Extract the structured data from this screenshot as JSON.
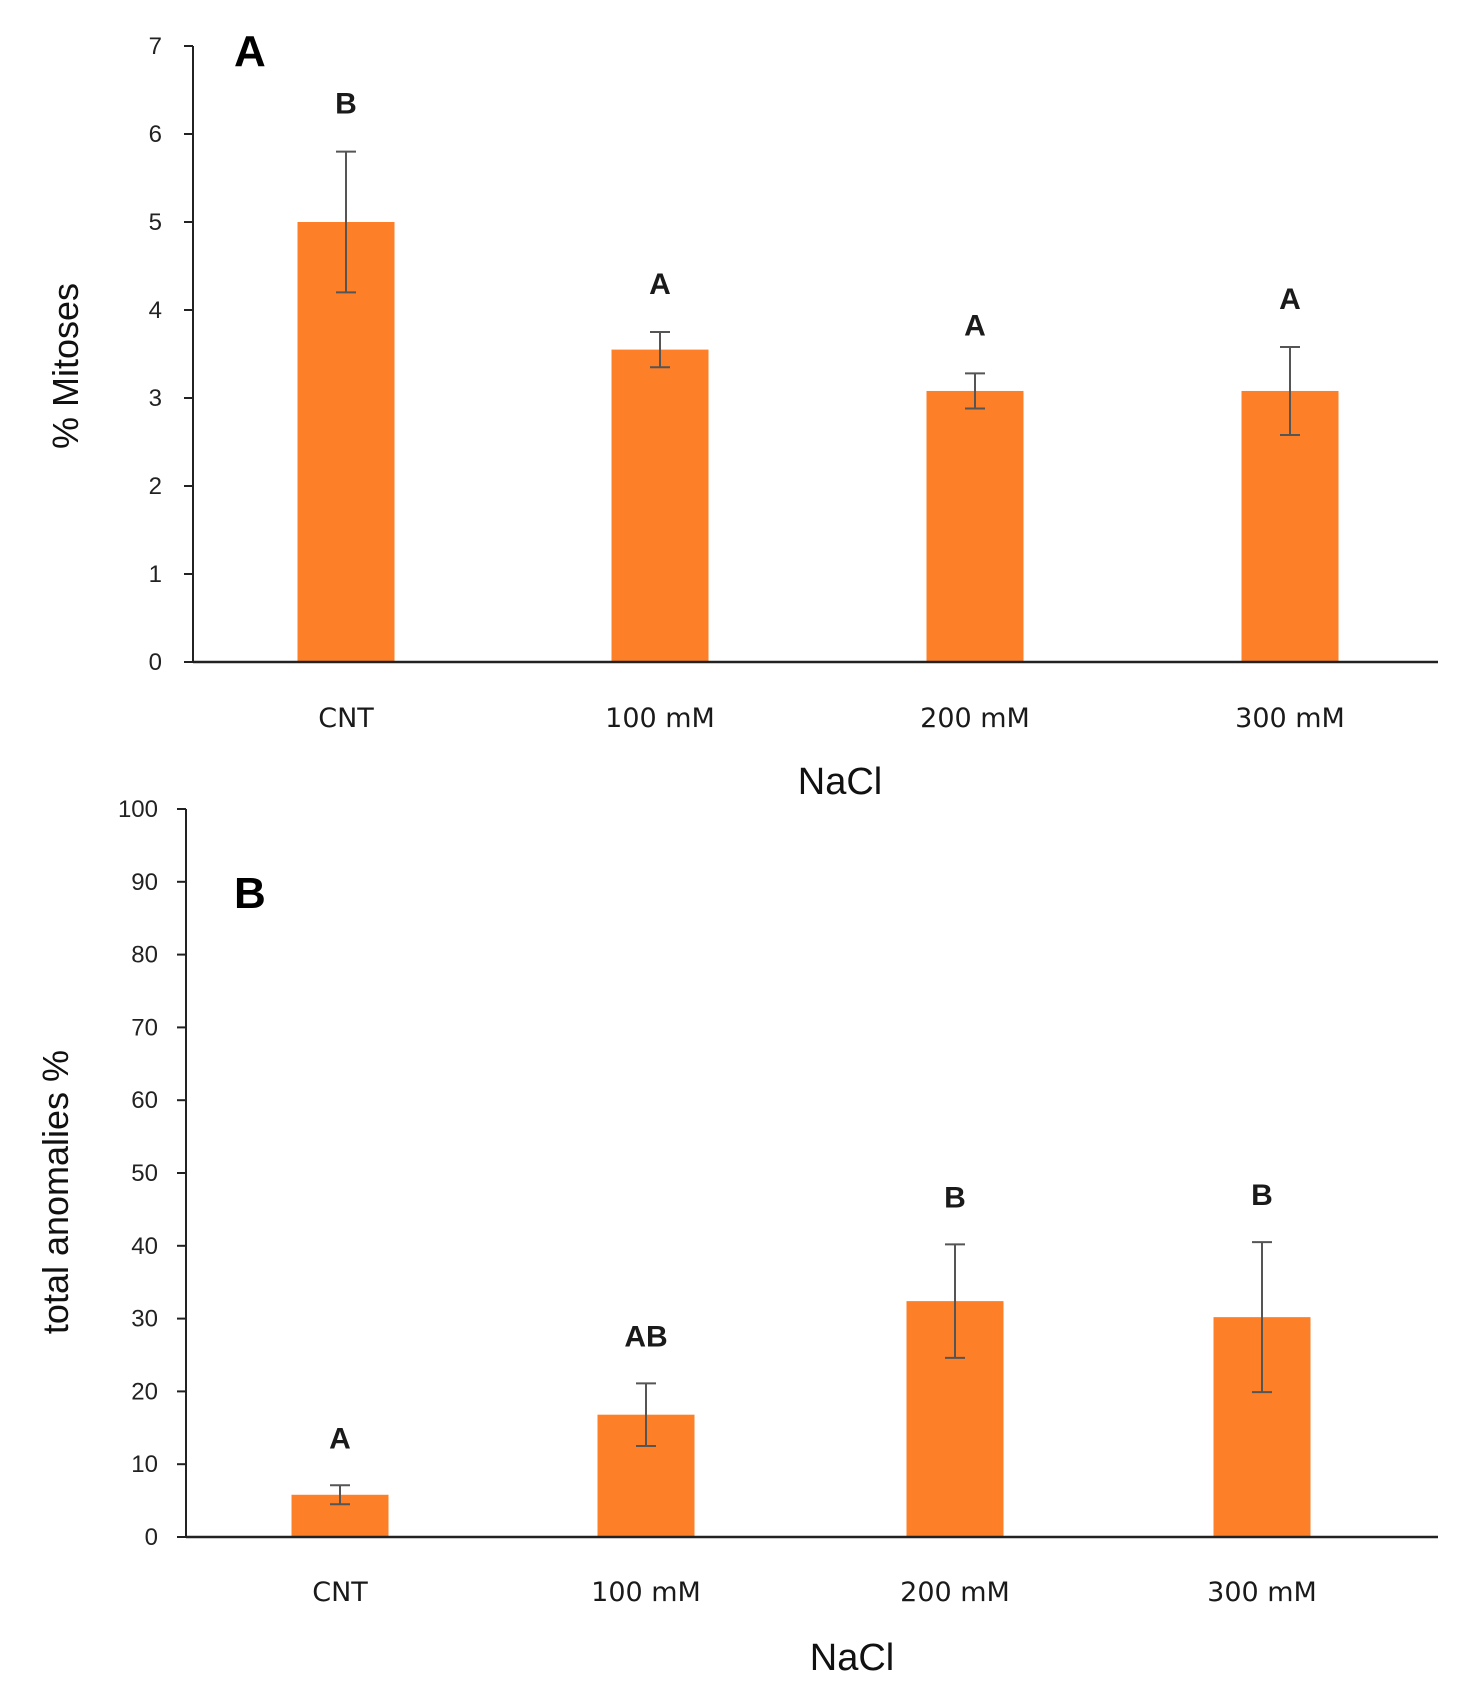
{
  "chart_data": [
    {
      "type": "bar",
      "panel": "A",
      "categories": [
        "CNT",
        "100 mM",
        "200 mM",
        "300 mM"
      ],
      "values": [
        5.0,
        3.55,
        3.08,
        3.08
      ],
      "error": [
        0.8,
        0.2,
        0.2,
        0.5
      ],
      "significance": [
        "B",
        "A",
        "A",
        "A"
      ],
      "title": "",
      "xlabel": "NaCl",
      "ylabel": "% Mitoses",
      "ylim": [
        0,
        7
      ],
      "yticks": [
        0,
        1,
        2,
        3,
        4,
        5,
        6,
        7
      ],
      "grid": false,
      "color": "#fd7f28"
    },
    {
      "type": "bar",
      "panel": "B",
      "categories": [
        "CNT",
        "100 mM",
        "200 mM",
        "300 mM"
      ],
      "values": [
        5.8,
        16.8,
        32.4,
        30.2
      ],
      "error": [
        1.3,
        4.3,
        7.8,
        10.3
      ],
      "significance": [
        "A",
        "AB",
        "B",
        "B"
      ],
      "title": "",
      "xlabel": "NaCl",
      "ylabel": "total anomalies %",
      "ylim": [
        0,
        100
      ],
      "yticks": [
        0,
        10,
        20,
        30,
        40,
        50,
        60,
        70,
        80,
        90,
        100
      ],
      "grid": false,
      "color": "#fd7f28"
    }
  ]
}
